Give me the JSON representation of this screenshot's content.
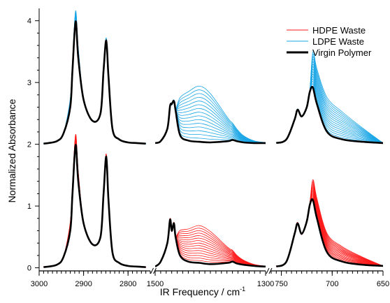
{
  "chart_data": {
    "type": "line",
    "title": "",
    "xlabel": "IR Frequency / cm",
    "xlabel_superscript": "-1",
    "ylabel": "Normalized Absorbance",
    "ylim": [
      -0.05,
      4.2
    ],
    "y_ticks": [
      "0",
      "1",
      "2",
      "3",
      "4"
    ],
    "legend": {
      "placement": "top-right",
      "entries": [
        {
          "name": "HDPE Waste",
          "color": "#ff1a1a"
        },
        {
          "name": "LDPE Waste",
          "color": "#1aa6e6"
        },
        {
          "name": "Virgin Polymer",
          "color": "#000000"
        }
      ]
    },
    "offsets": {
      "LDPE": 2,
      "HDPE": 0
    },
    "panels": [
      {
        "id": "ch-stretch",
        "x_range": [
          3000,
          2750
        ],
        "tick_labels": [
          "3000",
          "2900",
          "2800"
        ],
        "tick_values": [
          3000,
          2900,
          2800
        ]
      },
      {
        "id": "fingerprint",
        "x_range": [
          1500,
          1300
        ],
        "tick_labels": [
          "1500",
          "1300"
        ],
        "tick_values": [
          1500,
          1300
        ]
      },
      {
        "id": "rocking",
        "x_range": [
          760,
          650
        ],
        "tick_labels": [
          "750",
          "700",
          "650"
        ],
        "tick_values": [
          750,
          700,
          650
        ]
      }
    ],
    "series": [
      {
        "name": "Virgin Polymer",
        "offset_group": "LDPE",
        "x": [
          2990,
          2960,
          2945,
          2930,
          2925,
          2918,
          2912,
          2900,
          2880,
          2862,
          2855,
          2849,
          2844,
          2835,
          2820,
          2800,
          2780,
          2760,
          1500,
          1490,
          1478,
          1473,
          1470,
          1466,
          1463,
          1455,
          1440,
          1420,
          1400,
          1368,
          1360,
          1352,
          1340,
          1320,
          1300,
          755,
          745,
          737,
          734,
          730,
          725,
          722,
          719,
          715,
          705,
          690,
          670,
          650
        ],
        "y": [
          0.01,
          0.05,
          0.18,
          0.6,
          1.2,
          1.99,
          1.4,
          0.72,
          0.38,
          0.5,
          1.2,
          1.68,
          1.1,
          0.25,
          0.08,
          0.03,
          0.02,
          0.01,
          0.02,
          0.05,
          0.25,
          0.62,
          0.65,
          0.7,
          0.55,
          0.15,
          0.06,
          0.04,
          0.03,
          0.05,
          0.07,
          0.05,
          0.03,
          0.02,
          0.02,
          0.02,
          0.08,
          0.4,
          0.56,
          0.45,
          0.6,
          0.85,
          0.92,
          0.65,
          0.2,
          0.08,
          0.04,
          0.02
        ]
      },
      {
        "name": "Virgin Polymer",
        "offset_group": "HDPE",
        "x": [
          2990,
          2960,
          2945,
          2930,
          2925,
          2918,
          2912,
          2900,
          2880,
          2862,
          2855,
          2849,
          2844,
          2835,
          2820,
          2800,
          2780,
          2760,
          1500,
          1490,
          1478,
          1473,
          1470,
          1466,
          1463,
          1455,
          1440,
          1420,
          1400,
          1368,
          1360,
          1352,
          1340,
          1320,
          1300,
          755,
          745,
          737,
          734,
          730,
          725,
          722,
          719,
          715,
          705,
          690,
          670,
          650
        ],
        "y": [
          0.01,
          0.05,
          0.18,
          0.6,
          1.2,
          1.99,
          1.4,
          0.72,
          0.38,
          0.5,
          1.2,
          1.8,
          1.1,
          0.25,
          0.08,
          0.03,
          0.02,
          0.01,
          0.02,
          0.1,
          0.4,
          0.78,
          0.6,
          0.72,
          0.5,
          0.2,
          0.1,
          0.08,
          0.06,
          0.08,
          0.1,
          0.07,
          0.05,
          0.03,
          0.02,
          0.02,
          0.1,
          0.55,
          0.72,
          0.55,
          0.75,
          1.02,
          1.1,
          0.8,
          0.25,
          0.1,
          0.05,
          0.03
        ]
      }
    ]
  }
}
